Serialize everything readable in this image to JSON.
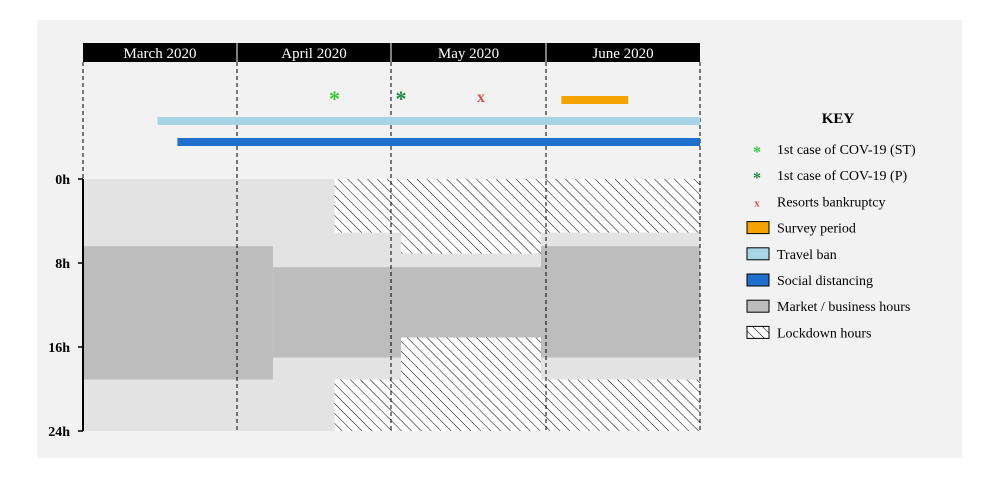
{
  "chart_data": {
    "type": "timeline",
    "title": "",
    "months": [
      "March 2020",
      "April 2020",
      "May 2020",
      "June 2020"
    ],
    "time_range_days": [
      0,
      122
    ],
    "hour_ticks": [
      {
        "hour": 0,
        "label": "0h"
      },
      {
        "hour": 8,
        "label": "8h"
      },
      {
        "hour": 16,
        "label": "16h"
      },
      {
        "hour": 24,
        "label": "24h"
      }
    ],
    "events": [
      {
        "key": "st",
        "label": "1st case of COV-19 (ST)",
        "day": 50,
        "symbol": "*",
        "color": "#33cc33"
      },
      {
        "key": "p",
        "label": "1st case of COV-19 (P)",
        "day": 63,
        "symbol": "*",
        "color": "#1f8a3a"
      },
      {
        "key": "bankruptcy",
        "label": "Resorts bankruptcy",
        "day": 79,
        "symbol": "x",
        "color": "#d9534f"
      }
    ],
    "bars": [
      {
        "key": "survey",
        "label": "Survey period",
        "start_day": 95,
        "end_day": 108,
        "color": "#f5a300"
      },
      {
        "key": "travel",
        "label": "Travel ban",
        "start_day": 15,
        "end_day": 122,
        "color": "#a8d4e6"
      },
      {
        "key": "social",
        "label": "Social distancing",
        "start_day": 19,
        "end_day": 122,
        "color": "#1f6fcc"
      }
    ],
    "market_hours": [
      {
        "start_day": 0,
        "end_day": 38,
        "from_hour": 6.4,
        "to_hour": 19.1
      },
      {
        "start_day": 38,
        "end_day": 91,
        "from_hour": 8.4,
        "to_hour": 17.0
      },
      {
        "start_day": 91,
        "end_day": 122,
        "from_hour": 6.4,
        "to_hour": 17.0
      }
    ],
    "lockdown_hours": [
      {
        "start_day": 50,
        "end_day": 122,
        "from_hour": 0,
        "to_hour": 5.1
      },
      {
        "start_day": 63,
        "end_day": 91,
        "from_hour": 5.1,
        "to_hour": 7.1
      },
      {
        "start_day": 63,
        "end_day": 91,
        "from_hour": 15.1,
        "to_hour": 19.1
      },
      {
        "start_day": 50,
        "end_day": 122,
        "from_hour": 19.1,
        "to_hour": 24
      }
    ],
    "key": {
      "title": "KEY",
      "items": [
        {
          "label": "1st case of COV-19 (ST)",
          "type": "symbol",
          "symbol": "*",
          "color": "#33cc33"
        },
        {
          "label": "1st case of COV-19 (P)",
          "type": "symbol",
          "symbol": "*",
          "color": "#1f8a3a"
        },
        {
          "label": "Resorts bankruptcy",
          "type": "symbol",
          "symbol": "x",
          "color": "#d9534f"
        },
        {
          "label": "Survey period",
          "type": "swatch",
          "color": "#f5a300"
        },
        {
          "label": "Travel ban",
          "type": "swatch",
          "color": "#a8d4e6"
        },
        {
          "label": "Social distancing",
          "type": "swatch",
          "color": "#1f6fcc"
        },
        {
          "label": "Market / business hours",
          "type": "swatch",
          "color": "#bdbdbd"
        },
        {
          "label": "Lockdown hours",
          "type": "hatch",
          "color": "#000000"
        }
      ]
    }
  }
}
